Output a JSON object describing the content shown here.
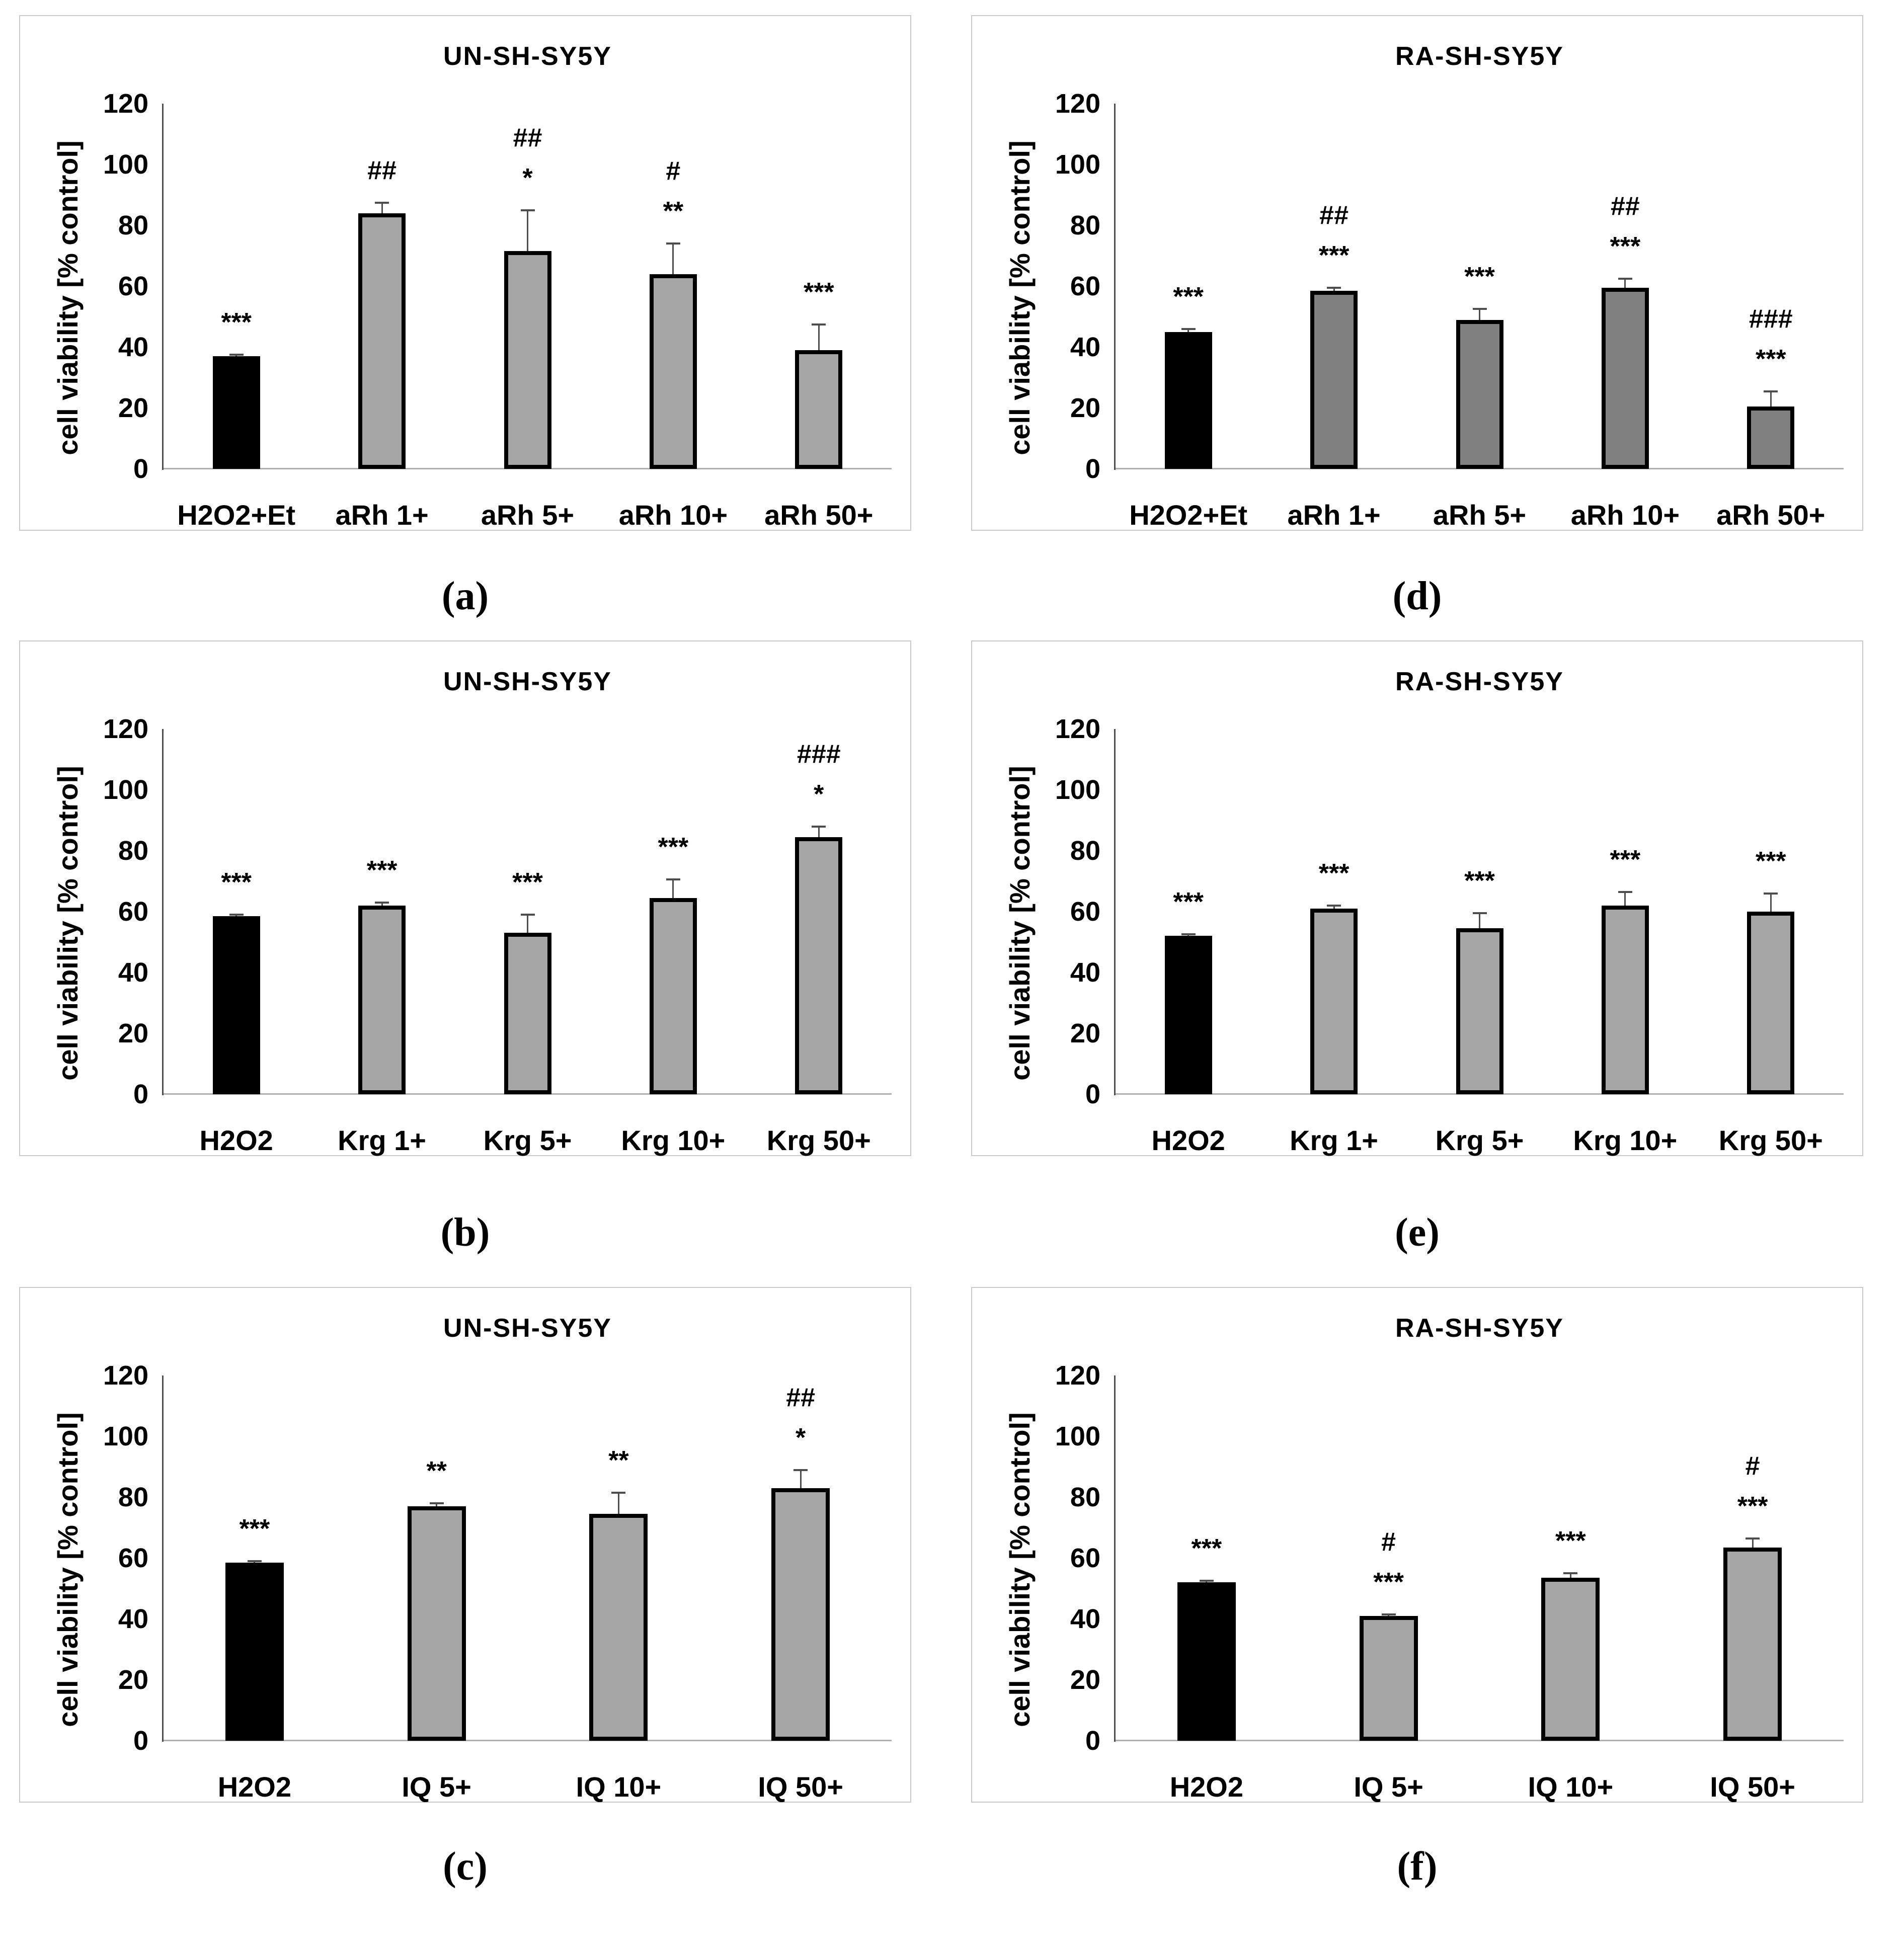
{
  "figure": {
    "yticks": [
      0,
      20,
      40,
      60,
      80,
      100,
      120
    ],
    "colors": {
      "control_bar": "#000000",
      "treatment_bar_light": "#a6a6a6",
      "treatment_bar_dark": "#808080",
      "bar_border": "#000000",
      "error_bar": "#4d4d4d",
      "y_axis_line": "#4d4d4d",
      "x_axis_line": "#b0b0b0",
      "panel_border": "#c9c9c9"
    }
  },
  "chart_data": [
    {
      "type": "bar",
      "panel_label": "(a)",
      "title": "UN-SH-SY5Y",
      "ylabel": "cell viability [% control]",
      "ylim": [
        0,
        120
      ],
      "grid": false,
      "categories": [
        "H2O2+Et",
        "aRh 1+",
        "aRh 5+",
        "aRh 10+",
        "aRh 50+"
      ],
      "values": [
        37,
        84,
        71.5,
        64,
        39
      ],
      "errors": [
        0.5,
        3.5,
        13.5,
        10,
        8.5
      ],
      "annotations": [
        [
          "***"
        ],
        [
          "##"
        ],
        [
          "##",
          "*"
        ],
        [
          "#",
          "**"
        ],
        [
          "***"
        ]
      ],
      "bar_colors": {
        "control": "#000000",
        "treatment": "#a6a6a6"
      }
    },
    {
      "type": "bar",
      "panel_label": "(b)",
      "title": "UN-SH-SY5Y",
      "ylabel": "cell viability [% control]",
      "ylim": [
        0,
        120
      ],
      "grid": false,
      "categories": [
        "H2O2",
        "Krg 1+",
        "Krg 5+",
        "Krg 10+",
        "Krg 50+"
      ],
      "values": [
        58.5,
        62,
        53,
        64.5,
        84.5
      ],
      "errors": [
        0.5,
        1,
        6,
        6,
        3.5
      ],
      "annotations": [
        [
          "***"
        ],
        [
          "***"
        ],
        [
          "***"
        ],
        [
          "***"
        ],
        [
          "###",
          "*"
        ]
      ],
      "bar_colors": {
        "control": "#000000",
        "treatment": "#a6a6a6"
      }
    },
    {
      "type": "bar",
      "panel_label": "(c)",
      "title": "UN-SH-SY5Y",
      "ylabel": "cell viability [% control]",
      "ylim": [
        0,
        120
      ],
      "grid": false,
      "categories": [
        "H2O2",
        "IQ 5+",
        "IQ 10+",
        "IQ 50+"
      ],
      "values": [
        58.5,
        77,
        74.5,
        83
      ],
      "errors": [
        0.5,
        1,
        7,
        6
      ],
      "annotations": [
        [
          "***"
        ],
        [
          "**"
        ],
        [
          "**"
        ],
        [
          "##",
          "*"
        ]
      ],
      "bar_colors": {
        "control": "#000000",
        "treatment": "#a6a6a6"
      }
    },
    {
      "type": "bar",
      "panel_label": "(d)",
      "title": "RA-SH-SY5Y",
      "ylabel": "cell viability [% control]",
      "ylim": [
        0,
        120
      ],
      "grid": false,
      "categories": [
        "H2O2+Et",
        "aRh 1+",
        "aRh 5+",
        "aRh 10+",
        "aRh 50+"
      ],
      "values": [
        45,
        58.5,
        49,
        59.5,
        20.5
      ],
      "errors": [
        1,
        1,
        3.5,
        3,
        5
      ],
      "annotations": [
        [
          "***"
        ],
        [
          "##",
          "***"
        ],
        [
          "***"
        ],
        [
          "##",
          "***"
        ],
        [
          "###",
          "***"
        ]
      ],
      "bar_colors": {
        "control": "#000000",
        "treatment": "#808080"
      }
    },
    {
      "type": "bar",
      "panel_label": "(e)",
      "title": "RA-SH-SY5Y",
      "ylabel": "cell viability [% control]",
      "ylim": [
        0,
        120
      ],
      "grid": false,
      "categories": [
        "H2O2",
        "Krg 1+",
        "Krg 5+",
        "Krg 10+",
        "Krg 50+"
      ],
      "values": [
        52,
        61,
        54.5,
        62,
        60
      ],
      "errors": [
        0.5,
        1,
        5,
        4.5,
        6
      ],
      "annotations": [
        [
          "***"
        ],
        [
          "***"
        ],
        [
          "***"
        ],
        [
          "***"
        ],
        [
          "***"
        ]
      ],
      "bar_colors": {
        "control": "#000000",
        "treatment": "#a6a6a6"
      }
    },
    {
      "type": "bar",
      "panel_label": "(f)",
      "title": "RA-SH-SY5Y",
      "ylabel": "cell viability [% control]",
      "ylim": [
        0,
        120
      ],
      "grid": false,
      "categories": [
        "H2O2",
        "IQ 5+",
        "IQ 10+",
        "IQ 50+"
      ],
      "values": [
        52,
        41,
        53.5,
        63.5
      ],
      "errors": [
        0.5,
        0.5,
        1.5,
        3
      ],
      "annotations": [
        [
          "***"
        ],
        [
          "#",
          "***"
        ],
        [
          "***"
        ],
        [
          "#",
          "***"
        ]
      ],
      "bar_colors": {
        "control": "#000000",
        "treatment": "#a6a6a6"
      }
    }
  ]
}
